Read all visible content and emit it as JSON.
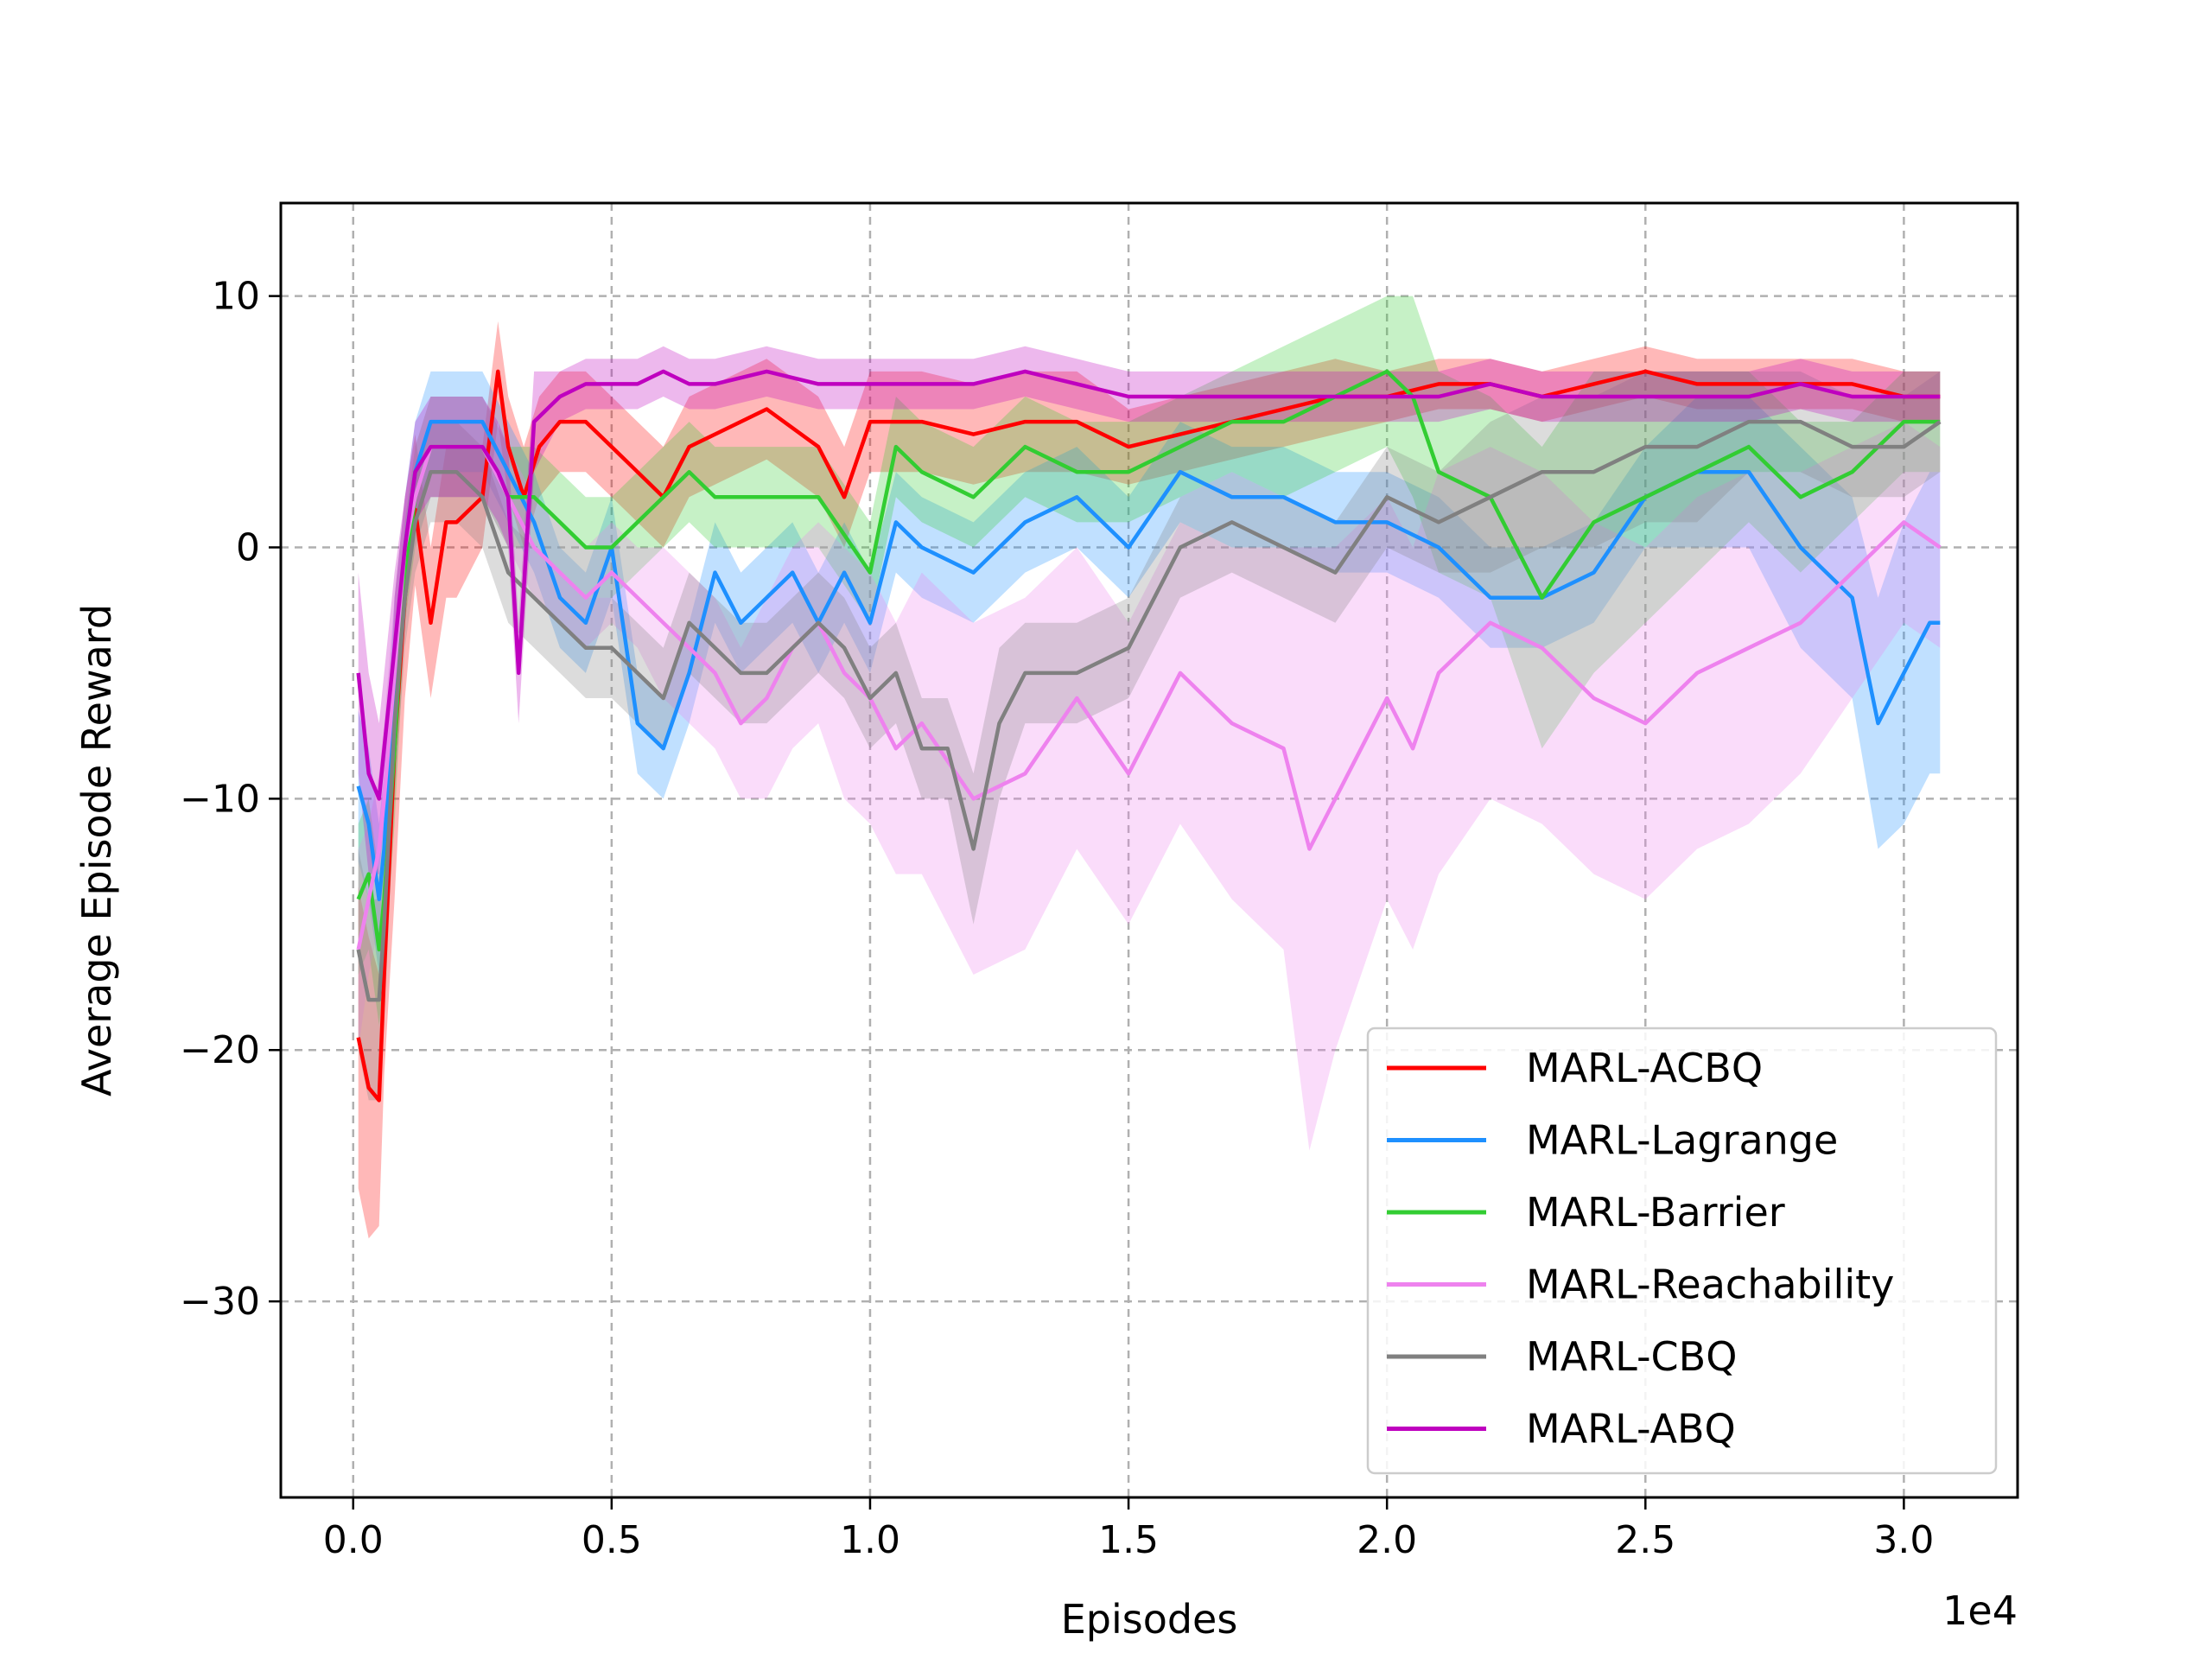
{
  "chart_data": {
    "type": "line",
    "title": "",
    "xlabel": "Episodes",
    "ylabel": "Average Episode Reward",
    "x_offset_label": "1e4",
    "xlim": [
      -0.14,
      3.22
    ],
    "ylim": [
      -37.8,
      13.7
    ],
    "xticks": [
      0.0,
      0.5,
      1.0,
      1.5,
      2.0,
      2.5,
      3.0
    ],
    "xtick_labels": [
      "0.0",
      "0.5",
      "1.0",
      "1.5",
      "2.0",
      "2.5",
      "3.0"
    ],
    "yticks": [
      10,
      0,
      -10,
      -20,
      -30
    ],
    "ytick_labels": [
      "10",
      "0",
      "−10",
      "−20",
      "−30"
    ],
    "grid": true,
    "legend_position": "lower-right",
    "series": [
      {
        "name": "MARL-ACBQ",
        "color": "#ff0000",
        "x": [
          0.01,
          0.03,
          0.05,
          0.06,
          0.08,
          0.1,
          0.12,
          0.15,
          0.18,
          0.2,
          0.25,
          0.28,
          0.3,
          0.33,
          0.36,
          0.4,
          0.45,
          0.5,
          0.55,
          0.6,
          0.65,
          0.7,
          0.8,
          0.9,
          0.95,
          1.0,
          1.1,
          1.2,
          1.3,
          1.4,
          1.5,
          1.6,
          1.7,
          1.8,
          1.9,
          2.0,
          2.1,
          2.2,
          2.3,
          2.4,
          2.5,
          2.6,
          2.7,
          2.8,
          2.9,
          3.0,
          3.07
        ],
        "y": [
          -19.5,
          -21.5,
          -22,
          -17,
          -8,
          -2,
          1.5,
          -3,
          1,
          1,
          2,
          7,
          4,
          2,
          4,
          5,
          5,
          4,
          3,
          2,
          4,
          4.5,
          5.5,
          4,
          2,
          5,
          5,
          4.5,
          5,
          5,
          4,
          4.5,
          5,
          5.5,
          6,
          6,
          6.5,
          6.5,
          6,
          6.5,
          7,
          6.5,
          6.5,
          6.5,
          6.5,
          6,
          6
        ],
        "band": [
          6,
          6,
          5,
          4,
          6,
          4,
          3,
          3,
          3,
          3,
          2,
          2,
          2,
          2,
          2,
          2,
          2,
          2,
          2,
          2,
          2,
          2,
          2,
          2,
          2,
          2,
          2,
          2,
          2,
          2,
          1.5,
          1.5,
          1.5,
          1.5,
          1.5,
          1,
          1,
          1,
          1,
          1,
          1,
          1,
          1,
          1,
          1,
          1,
          1
        ]
      },
      {
        "name": "MARL-Lagrange",
        "color": "#1e90ff",
        "x": [
          0.01,
          0.03,
          0.05,
          0.06,
          0.08,
          0.1,
          0.12,
          0.15,
          0.2,
          0.25,
          0.3,
          0.35,
          0.4,
          0.45,
          0.5,
          0.55,
          0.6,
          0.65,
          0.7,
          0.75,
          0.8,
          0.85,
          0.9,
          0.95,
          1.0,
          1.05,
          1.1,
          1.2,
          1.3,
          1.4,
          1.5,
          1.6,
          1.7,
          1.8,
          1.9,
          2.0,
          2.1,
          2.2,
          2.3,
          2.4,
          2.5,
          2.6,
          2.7,
          2.8,
          2.9,
          2.95,
          3.0,
          3.05,
          3.07
        ],
        "y": [
          -9.5,
          -11,
          -14,
          -12,
          -5,
          0,
          3,
          5,
          5,
          5,
          3,
          1,
          -2,
          -3,
          0,
          -7,
          -8,
          -5,
          -1,
          -3,
          -2,
          -1,
          -3,
          -1,
          -3,
          1,
          0,
          -1,
          1,
          2,
          0,
          3,
          2,
          2,
          1,
          1,
          0,
          -2,
          -2,
          -1,
          2,
          3,
          3,
          0,
          -2,
          -7,
          -5,
          -3,
          -3
        ],
        "band": [
          3,
          3,
          3,
          3,
          3,
          2,
          2,
          2,
          2,
          2,
          2,
          2,
          2,
          2,
          2,
          2,
          2,
          2,
          2,
          2,
          2,
          2,
          2,
          2,
          2,
          2,
          2,
          2,
          2,
          2,
          2,
          2,
          2,
          2,
          2,
          2,
          2,
          2,
          2,
          2,
          2,
          3,
          3,
          4,
          4,
          5,
          6,
          6,
          6
        ]
      },
      {
        "name": "MARL-Barrier",
        "color": "#32cd32",
        "x": [
          0.01,
          0.03,
          0.05,
          0.06,
          0.08,
          0.1,
          0.12,
          0.15,
          0.2,
          0.25,
          0.3,
          0.35,
          0.4,
          0.45,
          0.5,
          0.55,
          0.6,
          0.65,
          0.7,
          0.8,
          0.9,
          1.0,
          1.05,
          1.1,
          1.2,
          1.3,
          1.4,
          1.5,
          1.6,
          1.7,
          1.8,
          1.9,
          2.0,
          2.05,
          2.1,
          2.2,
          2.25,
          2.3,
          2.4,
          2.5,
          2.6,
          2.7,
          2.8,
          2.9,
          3.0,
          3.07
        ],
        "y": [
          -14,
          -13,
          -16,
          -14,
          -8,
          -1,
          2,
          4,
          4,
          4,
          2,
          2,
          1,
          0,
          0,
          1,
          2,
          3,
          2,
          2,
          2,
          -1,
          4,
          3,
          2,
          4,
          3,
          3,
          4,
          5,
          5,
          6,
          7,
          6,
          3,
          2,
          0,
          -2,
          1,
          2,
          3,
          4,
          2,
          3,
          5,
          5
        ],
        "band": [
          3,
          3,
          3,
          3,
          3,
          2,
          2,
          2,
          2,
          2,
          2,
          2,
          2,
          2,
          2,
          2,
          2,
          2,
          2,
          2,
          2,
          2,
          2,
          2,
          2,
          2,
          2,
          2,
          2,
          2,
          3,
          3,
          3,
          4,
          4,
          4,
          5,
          6,
          6,
          5,
          4,
          3,
          3,
          2,
          2,
          2
        ]
      },
      {
        "name": "MARL-Reachability",
        "color": "#ee82ee",
        "x": [
          0.01,
          0.03,
          0.05,
          0.06,
          0.08,
          0.1,
          0.12,
          0.15,
          0.2,
          0.25,
          0.3,
          0.35,
          0.4,
          0.45,
          0.5,
          0.55,
          0.6,
          0.65,
          0.7,
          0.75,
          0.8,
          0.85,
          0.9,
          0.95,
          1.0,
          1.05,
          1.1,
          1.2,
          1.3,
          1.4,
          1.5,
          1.6,
          1.7,
          1.8,
          1.85,
          1.9,
          2.0,
          2.05,
          2.1,
          2.2,
          2.3,
          2.4,
          2.5,
          2.6,
          2.7,
          2.8,
          2.9,
          3.0,
          3.07
        ],
        "y": [
          -16,
          -14,
          -12,
          -10,
          -5,
          0,
          2,
          4,
          4,
          4,
          2,
          0,
          -1,
          -2,
          -1,
          -2,
          -3,
          -4,
          -5,
          -7,
          -6,
          -4,
          -3,
          -5,
          -6,
          -8,
          -7,
          -10,
          -9,
          -6,
          -9,
          -5,
          -7,
          -8,
          -12,
          -10,
          -6,
          -8,
          -5,
          -3,
          -4,
          -6,
          -7,
          -5,
          -4,
          -3,
          -1,
          1,
          0
        ],
        "band": [
          4,
          3,
          3,
          3,
          3,
          2,
          2,
          2,
          2,
          2,
          2,
          2,
          2,
          2,
          2,
          2,
          3,
          3,
          3,
          3,
          4,
          4,
          4,
          5,
          5,
          5,
          6,
          7,
          7,
          6,
          6,
          6,
          7,
          8,
          12,
          10,
          8,
          8,
          8,
          7,
          7,
          7,
          7,
          7,
          7,
          6,
          5,
          4,
          4
        ]
      },
      {
        "name": "MARL-CBQ",
        "color": "#808080",
        "x": [
          0.01,
          0.03,
          0.05,
          0.06,
          0.08,
          0.1,
          0.12,
          0.15,
          0.2,
          0.25,
          0.3,
          0.35,
          0.4,
          0.45,
          0.5,
          0.55,
          0.6,
          0.65,
          0.7,
          0.75,
          0.8,
          0.85,
          0.9,
          0.95,
          1.0,
          1.05,
          1.1,
          1.15,
          1.2,
          1.25,
          1.3,
          1.4,
          1.5,
          1.6,
          1.7,
          1.8,
          1.9,
          2.0,
          2.1,
          2.2,
          2.3,
          2.4,
          2.5,
          2.6,
          2.7,
          2.8,
          2.9,
          3.0,
          3.07
        ],
        "y": [
          -16,
          -18,
          -18,
          -15,
          -7,
          -2,
          1,
          3,
          3,
          2,
          -1,
          -2,
          -3,
          -4,
          -4,
          -5,
          -6,
          -3,
          -4,
          -5,
          -5,
          -4,
          -3,
          -4,
          -6,
          -5,
          -8,
          -8,
          -12,
          -7,
          -5,
          -5,
          -4,
          0,
          1,
          0,
          -1,
          2,
          1,
          2,
          3,
          3,
          4,
          4,
          5,
          5,
          4,
          4,
          5
        ],
        "band": [
          4,
          4,
          4,
          4,
          3,
          2,
          2,
          2,
          2,
          2,
          2,
          2,
          2,
          2,
          2,
          2,
          2,
          2,
          2,
          2,
          2,
          2,
          2,
          2,
          2,
          2,
          2,
          2,
          3,
          3,
          2,
          2,
          2,
          2,
          2,
          2,
          2,
          2,
          2,
          3,
          3,
          3,
          3,
          3,
          2,
          2,
          2,
          2,
          2
        ]
      },
      {
        "name": "MARL-ABQ",
        "color": "#bf00bf",
        "x": [
          0.01,
          0.03,
          0.05,
          0.06,
          0.08,
          0.1,
          0.12,
          0.15,
          0.2,
          0.25,
          0.28,
          0.3,
          0.32,
          0.35,
          0.4,
          0.45,
          0.5,
          0.55,
          0.6,
          0.65,
          0.7,
          0.8,
          0.9,
          1.0,
          1.1,
          1.2,
          1.3,
          1.4,
          1.5,
          1.6,
          1.7,
          1.8,
          1.9,
          2.0,
          2.1,
          2.2,
          2.3,
          2.4,
          2.5,
          2.6,
          2.7,
          2.8,
          2.9,
          3.0,
          3.07
        ],
        "y": [
          -5,
          -9,
          -10,
          -8,
          -4,
          0,
          3,
          4,
          4,
          4,
          3,
          2,
          -5,
          5,
          6,
          6.5,
          6.5,
          6.5,
          7,
          6.5,
          6.5,
          7,
          6.5,
          6.5,
          6.5,
          6.5,
          7,
          6.5,
          6,
          6,
          6,
          6,
          6,
          6,
          6,
          6.5,
          6,
          6,
          6,
          6,
          6,
          6.5,
          6,
          6,
          6
        ],
        "band": [
          4,
          4,
          3,
          3,
          3,
          2,
          2,
          2,
          2,
          2,
          2,
          2,
          2,
          2,
          1,
          1,
          1,
          1,
          1,
          1,
          1,
          1,
          1,
          1,
          1,
          1,
          1,
          1,
          1,
          1,
          1,
          1,
          1,
          1,
          1,
          1,
          1,
          1,
          1,
          1,
          1,
          1,
          1,
          1,
          1
        ]
      }
    ]
  }
}
